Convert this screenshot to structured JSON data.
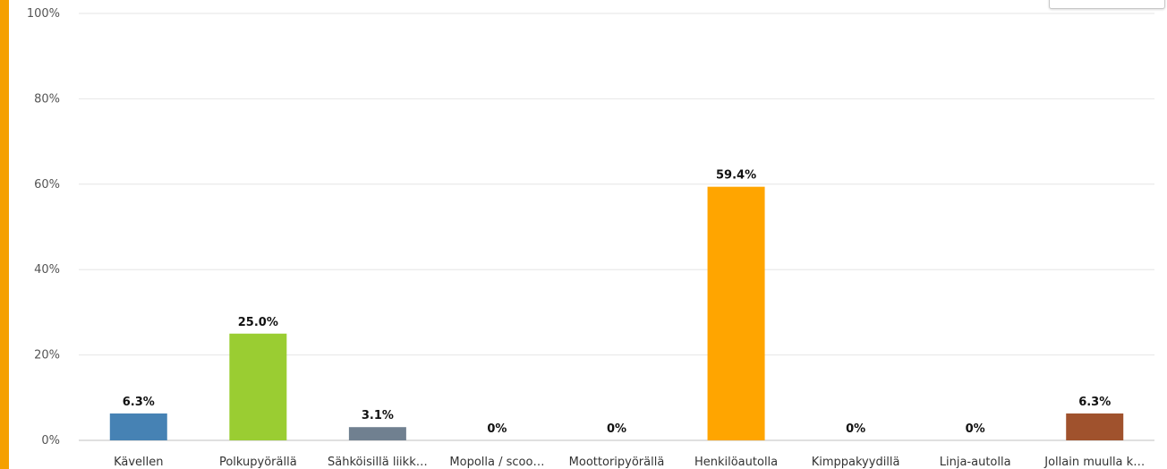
{
  "chart_data": {
    "type": "bar",
    "categories": [
      "Kävellen",
      "Polkupyörällä",
      "Sähköisillä liikk…",
      "Mopolla / scoo…",
      "Moottoripyörällä",
      "Henkilöautolla",
      "Kimppakyydillä",
      "Linja-autolla",
      "Jollain muulla k…"
    ],
    "values": [
      6.3,
      25.0,
      3.1,
      0,
      0,
      59.4,
      0,
      0,
      6.3
    ],
    "data_labels": [
      "6.3%",
      "25.0%",
      "3.1%",
      "0%",
      "0%",
      "59.4%",
      "0%",
      "0%",
      "6.3%"
    ],
    "colors": [
      "#4682b4",
      "#9acd32",
      "#708090",
      "#cccccc",
      "#cccccc",
      "#ffa500",
      "#cccccc",
      "#cccccc",
      "#a0522d"
    ],
    "y_ticks": [
      0,
      20,
      40,
      60,
      80,
      100
    ],
    "y_tick_labels": [
      "0%",
      "20%",
      "40%",
      "60%",
      "80%",
      "100%"
    ],
    "ylim": [
      0,
      100
    ],
    "grid": true
  }
}
